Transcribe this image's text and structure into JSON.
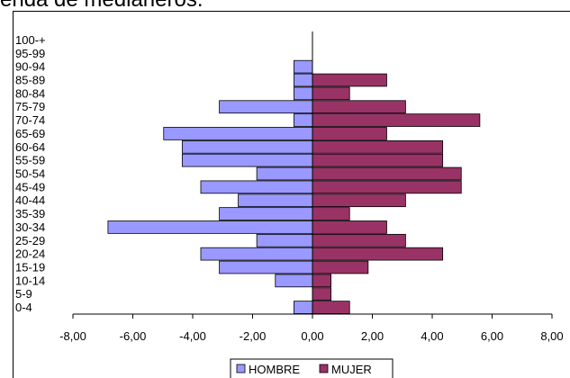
{
  "chart_data": {
    "type": "bar",
    "orientation": "horizontal",
    "layout": "population-pyramid",
    "title": "enda de medianeros.",
    "categories": [
      "0-4",
      "5-9",
      "10-14",
      "15-19",
      "20-24",
      "25-29",
      "30-34",
      "35-39",
      "40-44",
      "45-49",
      "50-54",
      "55-59",
      "60-64",
      "65-69",
      "70-74",
      "75-79",
      "80-84",
      "85-89",
      "90-94",
      "95-99",
      "100-+"
    ],
    "series": [
      {
        "name": "HOMBRE",
        "color": "#9999ff",
        "values": [
          -0.62,
          0,
          -1.24,
          -3.11,
          -3.73,
          -1.86,
          -6.83,
          -3.11,
          -2.48,
          -3.73,
          -1.86,
          -4.35,
          -4.35,
          -4.97,
          -0.62,
          -3.11,
          -0.62,
          -0.62,
          -0.62,
          0,
          0
        ]
      },
      {
        "name": "MUJER",
        "color": "#993366",
        "values": [
          1.24,
          0.62,
          0.62,
          1.86,
          4.35,
          3.11,
          2.48,
          1.24,
          3.11,
          4.97,
          4.97,
          4.35,
          4.35,
          2.48,
          5.59,
          3.11,
          1.24,
          2.48,
          0,
          0,
          0
        ]
      }
    ],
    "xlim": [
      -8,
      8
    ],
    "xticks": [
      "-8,00",
      "-6,00",
      "-4,00",
      "-2,00",
      "0,00",
      "2,00",
      "4,00",
      "6,00",
      "8,00"
    ],
    "grid": false,
    "legend_position": "bottom",
    "xlabel": "",
    "ylabel": ""
  }
}
